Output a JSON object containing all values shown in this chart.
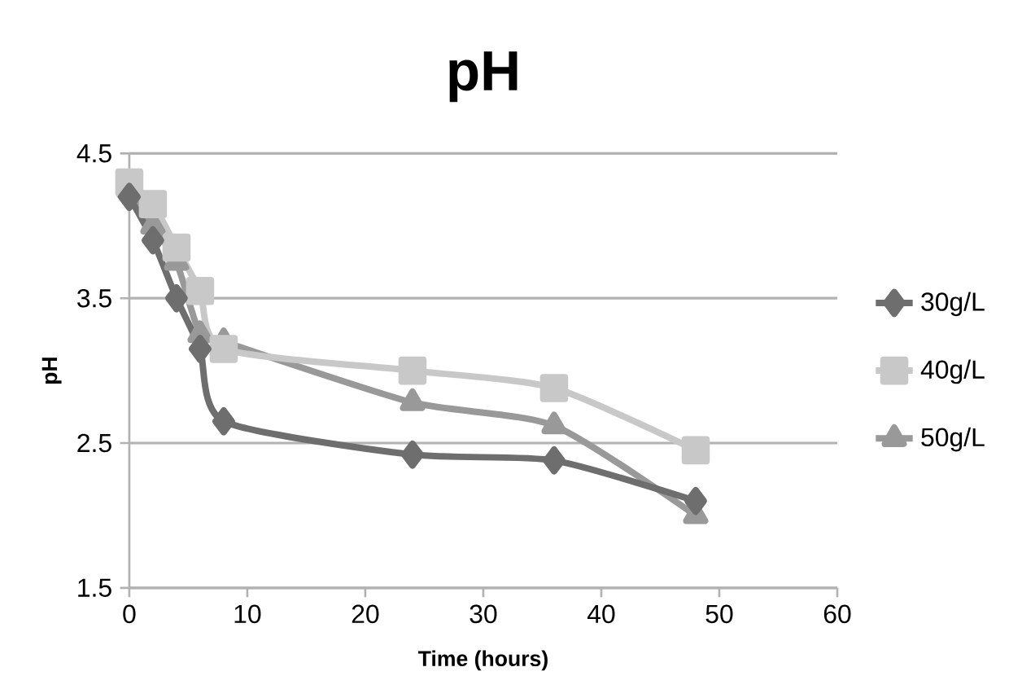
{
  "chart_data": {
    "type": "line",
    "title": "pH",
    "xlabel": "Time (hours)",
    "ylabel": "pH",
    "xlim": [
      0,
      60
    ],
    "xticks": [
      0,
      10,
      20,
      30,
      40,
      50,
      60
    ],
    "ylim": [
      1.5,
      4.5
    ],
    "yticks": [
      1.5,
      2.5,
      3.5,
      4.5
    ],
    "grid": "y",
    "legend": "right",
    "series": [
      {
        "name": "30g/L",
        "color": "#6e6e6e",
        "marker": "diamond",
        "x": [
          0,
          2,
          4,
          6,
          8,
          24,
          36,
          48
        ],
        "values": [
          4.2,
          3.9,
          3.5,
          3.15,
          2.65,
          2.42,
          2.38,
          2.1
        ]
      },
      {
        "name": "40g/L",
        "color": "#c8c8c8",
        "marker": "square",
        "x": [
          0,
          2,
          4,
          6,
          8,
          24,
          36,
          48
        ],
        "values": [
          4.3,
          4.15,
          3.85,
          3.55,
          3.15,
          3.0,
          2.88,
          2.45
        ]
      },
      {
        "name": "50g/L",
        "color": "#999999",
        "marker": "triangle",
        "x": [
          0,
          2,
          4,
          6,
          8,
          24,
          36,
          48
        ],
        "values": [
          4.25,
          4.0,
          3.75,
          3.25,
          3.2,
          2.78,
          2.62,
          2.0
        ]
      }
    ]
  }
}
